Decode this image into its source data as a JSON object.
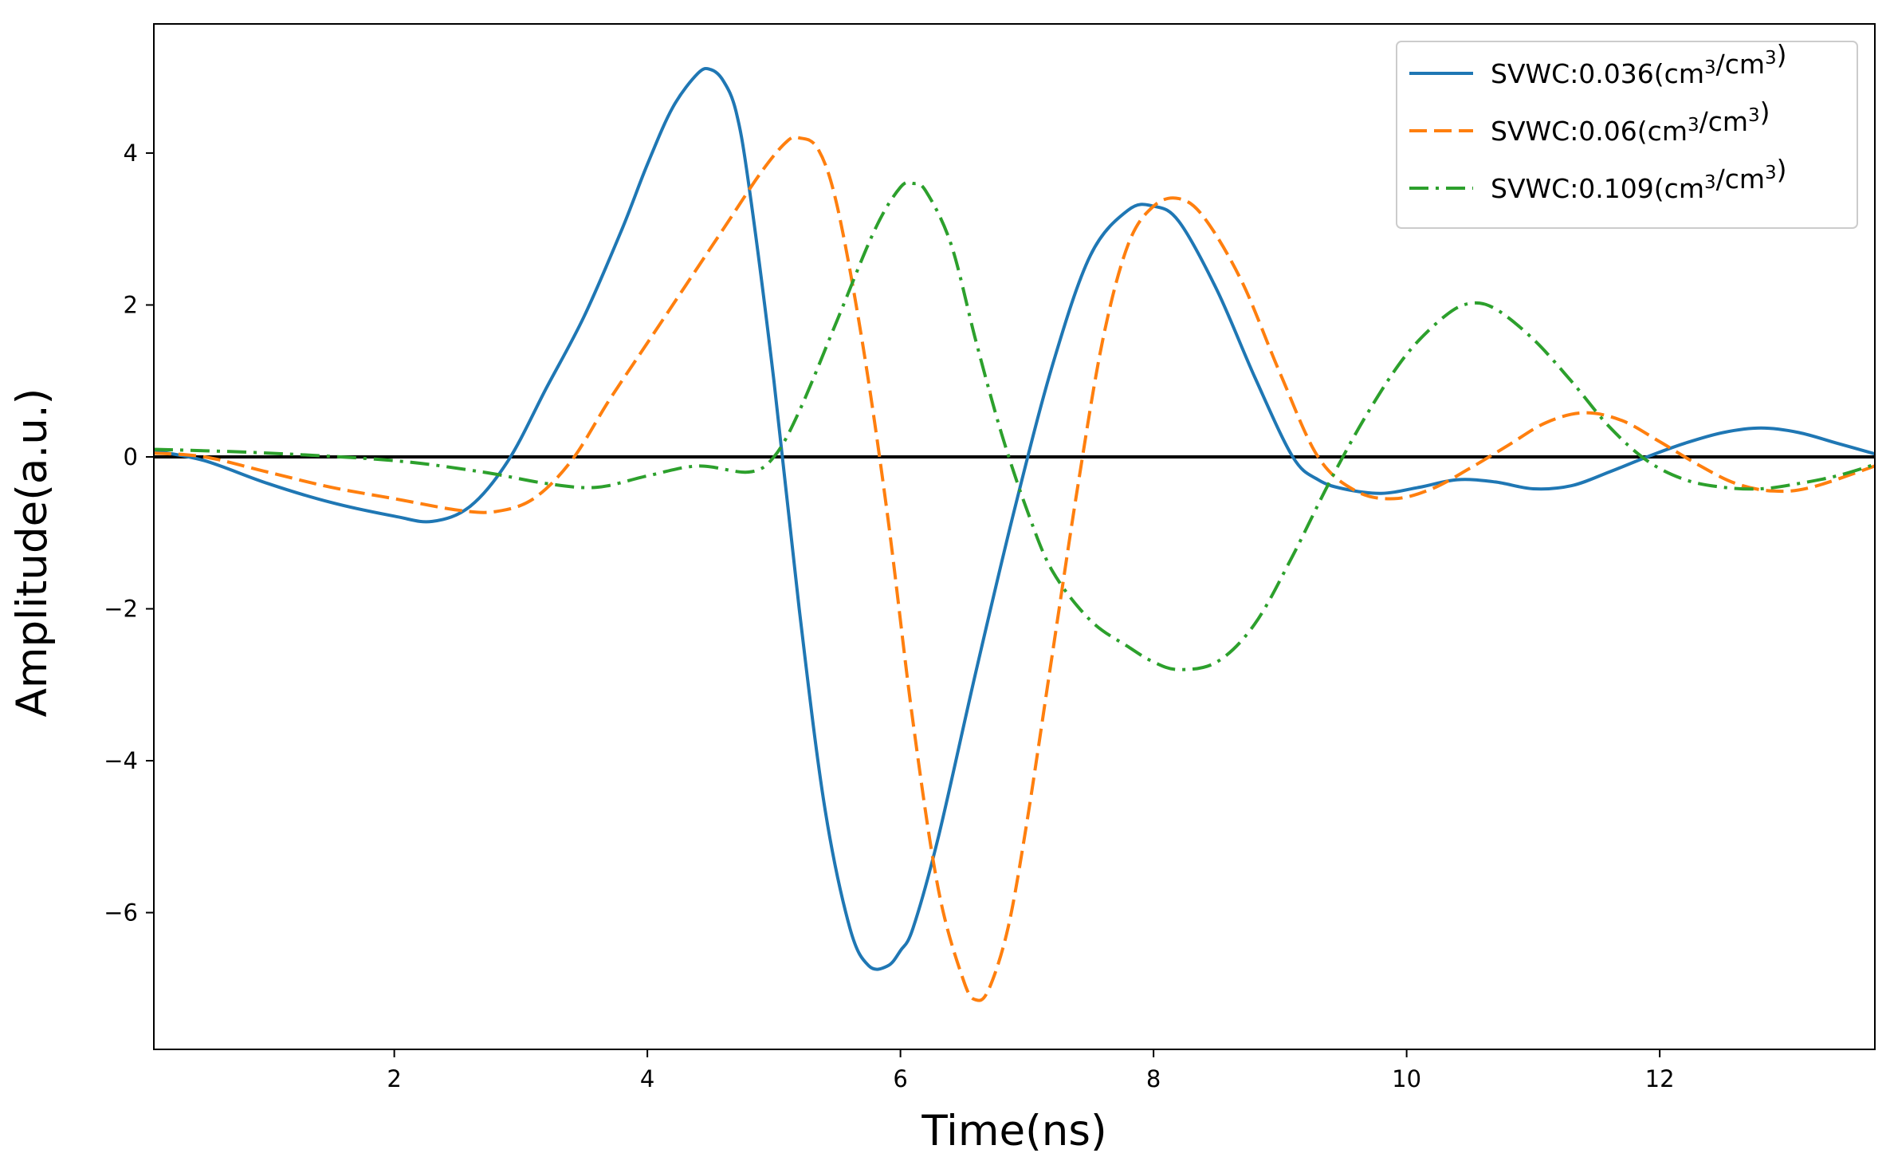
{
  "chart_data": {
    "type": "line",
    "title": "",
    "xlabel": "Time(ns)",
    "ylabel": "Amplitude(a.u.)",
    "xlim": [
      0.1,
      13.7
    ],
    "ylim": [
      -7.8,
      5.7
    ],
    "x_ticks": [
      2,
      4,
      6,
      8,
      10,
      12
    ],
    "y_ticks": [
      -6,
      -4,
      -2,
      0,
      2,
      4
    ],
    "x_tick_labels": [
      "2",
      "4",
      "6",
      "8",
      "10",
      "12"
    ],
    "y_tick_labels": [
      "−6",
      "−4",
      "−2",
      "0",
      "2",
      "4"
    ],
    "grid": false,
    "legend_position": "top-right",
    "reference_line": {
      "y": 0,
      "color": "#000000"
    },
    "series": [
      {
        "name_prefix": "SVWC:0.036",
        "name_unit": "(cm3/cm3)",
        "color": "#1f77b4",
        "style": "solid",
        "x": [
          0.1,
          0.5,
          1.0,
          1.5,
          2.0,
          2.3,
          2.6,
          2.9,
          3.2,
          3.5,
          3.8,
          4.0,
          4.2,
          4.4,
          4.5,
          4.6,
          4.7,
          4.8,
          5.0,
          5.2,
          5.4,
          5.6,
          5.75,
          5.9,
          6.0,
          6.1,
          6.3,
          6.6,
          6.9,
          7.2,
          7.5,
          7.8,
          8.0,
          8.2,
          8.5,
          8.8,
          9.1,
          9.3,
          9.5,
          9.8,
          10.1,
          10.4,
          10.7,
          11.0,
          11.3,
          11.6,
          11.9,
          12.2,
          12.5,
          12.8,
          13.1,
          13.4,
          13.7
        ],
        "y": [
          0.08,
          -0.05,
          -0.35,
          -0.6,
          -0.78,
          -0.85,
          -0.65,
          -0.05,
          0.9,
          1.85,
          3.0,
          3.85,
          4.6,
          5.05,
          5.1,
          4.95,
          4.55,
          3.6,
          1.0,
          -2.0,
          -4.6,
          -6.2,
          -6.7,
          -6.7,
          -6.5,
          -6.2,
          -5.0,
          -2.8,
          -0.7,
          1.2,
          2.65,
          3.25,
          3.3,
          3.1,
          2.2,
          1.05,
          0.0,
          -0.3,
          -0.42,
          -0.48,
          -0.4,
          -0.3,
          -0.33,
          -0.42,
          -0.38,
          -0.2,
          0.0,
          0.18,
          0.32,
          0.38,
          0.32,
          0.18,
          0.04
        ]
      },
      {
        "name_prefix": "SVWC:0.06",
        "name_unit": "(cm3/cm3)",
        "color": "#ff7f0e",
        "style": "dashed",
        "x": [
          0.1,
          0.5,
          1.0,
          1.5,
          2.0,
          2.5,
          2.8,
          3.1,
          3.4,
          3.7,
          4.0,
          4.3,
          4.6,
          4.9,
          5.1,
          5.2,
          5.35,
          5.5,
          5.7,
          5.9,
          6.1,
          6.3,
          6.5,
          6.6,
          6.7,
          6.85,
          7.0,
          7.2,
          7.4,
          7.6,
          7.8,
          8.0,
          8.2,
          8.4,
          8.7,
          9.0,
          9.3,
          9.6,
          9.9,
          10.2,
          10.5,
          10.8,
          11.1,
          11.4,
          11.7,
          12.0,
          12.3,
          12.6,
          12.9,
          13.2,
          13.7
        ],
        "y": [
          0.05,
          0.0,
          -0.2,
          -0.4,
          -0.55,
          -0.7,
          -0.72,
          -0.55,
          -0.05,
          0.75,
          1.5,
          2.25,
          3.0,
          3.75,
          4.15,
          4.2,
          4.05,
          3.3,
          1.5,
          -0.8,
          -3.5,
          -5.7,
          -6.9,
          -7.15,
          -7.0,
          -6.2,
          -4.8,
          -2.6,
          -0.4,
          1.55,
          2.8,
          3.3,
          3.4,
          3.15,
          2.3,
          1.1,
          0.0,
          -0.45,
          -0.55,
          -0.42,
          -0.15,
          0.15,
          0.45,
          0.58,
          0.48,
          0.2,
          -0.1,
          -0.35,
          -0.45,
          -0.4,
          -0.12
        ]
      },
      {
        "name_prefix": "SVWC:0.109",
        "name_unit": "(cm3/cm3)",
        "color": "#2ca02c",
        "style": "dashdot",
        "x": [
          0.1,
          1.0,
          2.0,
          2.7,
          3.2,
          3.6,
          4.0,
          4.4,
          4.8,
          5.0,
          5.2,
          5.5,
          5.8,
          6.0,
          6.1,
          6.2,
          6.4,
          6.6,
          6.8,
          7.0,
          7.2,
          7.5,
          7.8,
          8.0,
          8.2,
          8.5,
          8.8,
          9.1,
          9.4,
          9.7,
          10.0,
          10.3,
          10.5,
          10.7,
          11.0,
          11.3,
          11.6,
          11.9,
          12.2,
          12.5,
          12.8,
          13.1,
          13.4,
          13.7
        ],
        "y": [
          0.1,
          0.05,
          -0.05,
          -0.2,
          -0.35,
          -0.4,
          -0.25,
          -0.12,
          -0.2,
          0.0,
          0.6,
          1.8,
          3.0,
          3.55,
          3.6,
          3.5,
          2.8,
          1.5,
          0.3,
          -0.7,
          -1.5,
          -2.15,
          -2.5,
          -2.7,
          -2.8,
          -2.7,
          -2.2,
          -1.3,
          -0.3,
          0.6,
          1.35,
          1.85,
          2.02,
          1.95,
          1.55,
          1.0,
          0.4,
          -0.05,
          -0.3,
          -0.4,
          -0.42,
          -0.35,
          -0.25,
          -0.1
        ]
      }
    ]
  }
}
